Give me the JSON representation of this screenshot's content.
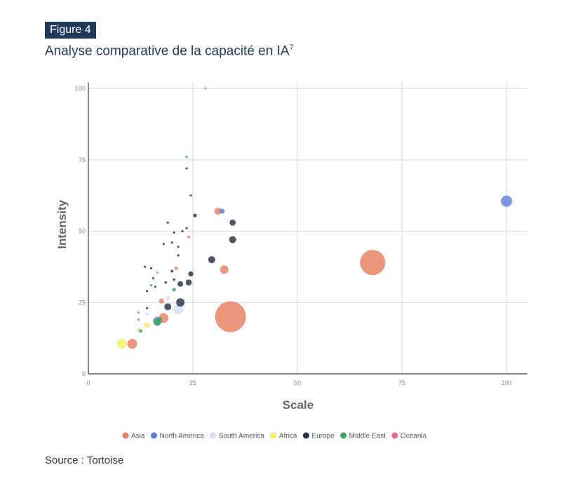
{
  "figure_label": "Figure 4",
  "title": "Analyse comparative de la capacité en IA",
  "title_sup": "7",
  "source": "Source : Tortoise",
  "chart_data": {
    "type": "scatter",
    "xlabel": "Scale",
    "ylabel": "Intensity",
    "xlim": [
      0,
      105
    ],
    "ylim": [
      0,
      102
    ],
    "xticks": [
      0,
      25,
      50,
      75,
      100
    ],
    "yticks": [
      0,
      25,
      50,
      75,
      100
    ],
    "grid": true,
    "legend_position": "bottom",
    "series": [
      {
        "name": "Asia",
        "color": "#e8805f",
        "points": [
          {
            "x": 28,
            "y": 100,
            "size": 0.4
          },
          {
            "x": 34,
            "y": 20,
            "size": 11
          },
          {
            "x": 68,
            "y": 39,
            "size": 9
          },
          {
            "x": 31,
            "y": 57,
            "size": 2.5
          },
          {
            "x": 32.5,
            "y": 36.5,
            "size": 3
          },
          {
            "x": 10.5,
            "y": 10.5,
            "size": 3.5
          },
          {
            "x": 18,
            "y": 19.5,
            "size": 3.5
          },
          {
            "x": 17.5,
            "y": 25.5,
            "size": 1.8
          },
          {
            "x": 21,
            "y": 37,
            "size": 1.3
          },
          {
            "x": 12,
            "y": 21.5,
            "size": 0.8
          },
          {
            "x": 16.5,
            "y": 35.5,
            "size": 0.6
          }
        ]
      },
      {
        "name": "North America",
        "color": "#5c7fdb",
        "points": [
          {
            "x": 100,
            "y": 60.5,
            "size": 4
          },
          {
            "x": 16.5,
            "y": 18.5,
            "size": 3
          },
          {
            "x": 32,
            "y": 57,
            "size": 1.8
          }
        ]
      },
      {
        "name": "South America",
        "color": "#d9dcf5",
        "points": [
          {
            "x": 21.5,
            "y": 22.5,
            "size": 3.5
          },
          {
            "x": 19,
            "y": 26.5,
            "size": 1.8
          },
          {
            "x": 14,
            "y": 21,
            "size": 1.3
          }
        ]
      },
      {
        "name": "Africa",
        "color": "#f6ea6a",
        "points": [
          {
            "x": 8,
            "y": 10.5,
            "size": 3.5
          },
          {
            "x": 14,
            "y": 17,
            "size": 2
          },
          {
            "x": 12,
            "y": 15.5,
            "size": 1.3
          }
        ]
      },
      {
        "name": "Europe",
        "color": "#273248",
        "points": [
          {
            "x": 22,
            "y": 25,
            "size": 3
          },
          {
            "x": 19,
            "y": 23.5,
            "size": 2.5
          },
          {
            "x": 24,
            "y": 32,
            "size": 2.2
          },
          {
            "x": 22,
            "y": 31.5,
            "size": 2
          },
          {
            "x": 24.5,
            "y": 35,
            "size": 1.8
          },
          {
            "x": 29.5,
            "y": 40,
            "size": 2.5
          },
          {
            "x": 34.5,
            "y": 47,
            "size": 2.5
          },
          {
            "x": 34.5,
            "y": 53,
            "size": 2.2
          },
          {
            "x": 25.5,
            "y": 55.5,
            "size": 1.3
          },
          {
            "x": 20,
            "y": 36,
            "size": 1
          },
          {
            "x": 20.5,
            "y": 33,
            "size": 0.9
          },
          {
            "x": 18.5,
            "y": 32,
            "size": 0.9
          },
          {
            "x": 16,
            "y": 30.5,
            "size": 0.8
          },
          {
            "x": 14,
            "y": 29,
            "size": 0.8
          },
          {
            "x": 13.5,
            "y": 37.5,
            "size": 0.8
          },
          {
            "x": 15,
            "y": 37,
            "size": 0.7
          },
          {
            "x": 21.5,
            "y": 41.5,
            "size": 0.8
          },
          {
            "x": 21.5,
            "y": 44.5,
            "size": 0.8
          },
          {
            "x": 20,
            "y": 46,
            "size": 0.8
          },
          {
            "x": 18,
            "y": 45.5,
            "size": 0.8
          },
          {
            "x": 22.5,
            "y": 50,
            "size": 0.8
          },
          {
            "x": 23.5,
            "y": 51,
            "size": 0.8
          },
          {
            "x": 20.5,
            "y": 49.5,
            "size": 0.8
          },
          {
            "x": 19,
            "y": 53,
            "size": 0.7
          },
          {
            "x": 24.5,
            "y": 62.5,
            "size": 0.8
          },
          {
            "x": 23.5,
            "y": 72,
            "size": 0.8
          },
          {
            "x": 14,
            "y": 23,
            "size": 0.8
          },
          {
            "x": 15.5,
            "y": 33.5,
            "size": 0.7
          }
        ]
      },
      {
        "name": "Middle East",
        "color": "#3ea660",
        "points": [
          {
            "x": 23.5,
            "y": 76,
            "size": 0.8
          },
          {
            "x": 20.5,
            "y": 29.5,
            "size": 1.3
          },
          {
            "x": 15,
            "y": 31,
            "size": 0.8
          },
          {
            "x": 12,
            "y": 19,
            "size": 0.8
          },
          {
            "x": 12.5,
            "y": 15,
            "size": 1.3
          },
          {
            "x": 16.5,
            "y": 18,
            "size": 2.5
          },
          {
            "x": 17,
            "y": 19,
            "size": 1.8
          }
        ]
      },
      {
        "name": "Oceania",
        "color": "#e8668a",
        "points": [
          {
            "x": 24,
            "y": 48,
            "size": 1
          }
        ]
      }
    ]
  }
}
